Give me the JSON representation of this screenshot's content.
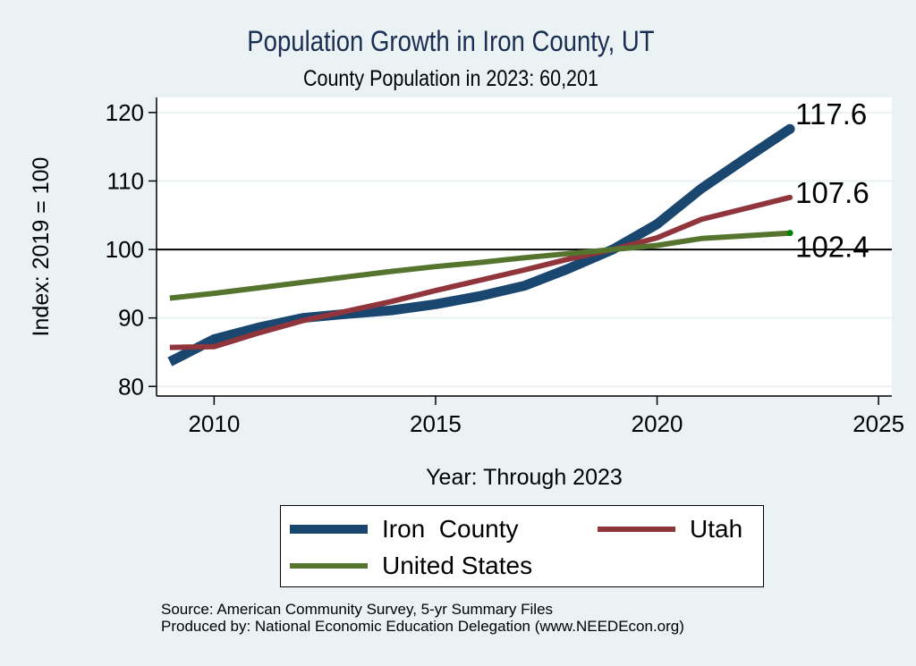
{
  "title": "Population Growth in Iron County, UT",
  "subtitle": "County Population in 2023: 60,201",
  "footer": {
    "source": "Source: American Community Survey, 5-yr Summary Files",
    "produced_by": "Produced by: National Economic Education Delegation (www.NEEDEcon.org)"
  },
  "chart_data": {
    "type": "line",
    "title": "Population Growth in Iron County, UT",
    "subtitle": "County Population in 2023: 60,201",
    "xlabel": "Year: Through 2023",
    "ylabel": "Index: 2019 = 100",
    "xlim": [
      2008.7,
      2025.3
    ],
    "ylim": [
      78.6,
      122.2
    ],
    "xticks": [
      2010,
      2015,
      2020,
      2025
    ],
    "yticks": [
      80,
      90,
      100,
      110,
      120
    ],
    "xtick_labels": [
      "2010",
      "2015",
      "2020",
      "2025"
    ],
    "ytick_labels": [
      "80",
      "90",
      "100",
      "110",
      "120"
    ],
    "grid": true,
    "reference_line": 100,
    "legend_position": "bottom",
    "x": [
      2009,
      2010,
      2011,
      2012,
      2013,
      2014,
      2015,
      2016,
      2017,
      2018,
      2019,
      2020,
      2021,
      2022,
      2023
    ],
    "series": [
      {
        "name": "Iron  County",
        "color": "#1a476f",
        "values": [
          83.6,
          86.9,
          88.6,
          90.0,
          90.6,
          91.1,
          92.0,
          93.2,
          94.7,
          97.2,
          100.0,
          103.7,
          108.9,
          113.3,
          117.6
        ],
        "end_label": "117.6"
      },
      {
        "name": "Utah",
        "color": "#90353b",
        "values": [
          85.7,
          85.8,
          87.8,
          89.6,
          91.0,
          92.4,
          94.0,
          95.5,
          97.0,
          98.6,
          100.0,
          101.7,
          104.4,
          106.0,
          107.6
        ],
        "end_label": "107.6"
      },
      {
        "name": "United States",
        "color": "#55752f",
        "values": [
          92.9,
          93.6,
          94.4,
          95.2,
          96.0,
          96.8,
          97.5,
          98.1,
          98.8,
          99.4,
          100.0,
          100.6,
          101.6,
          102.0,
          102.4
        ],
        "end_label": "102.4"
      }
    ]
  }
}
